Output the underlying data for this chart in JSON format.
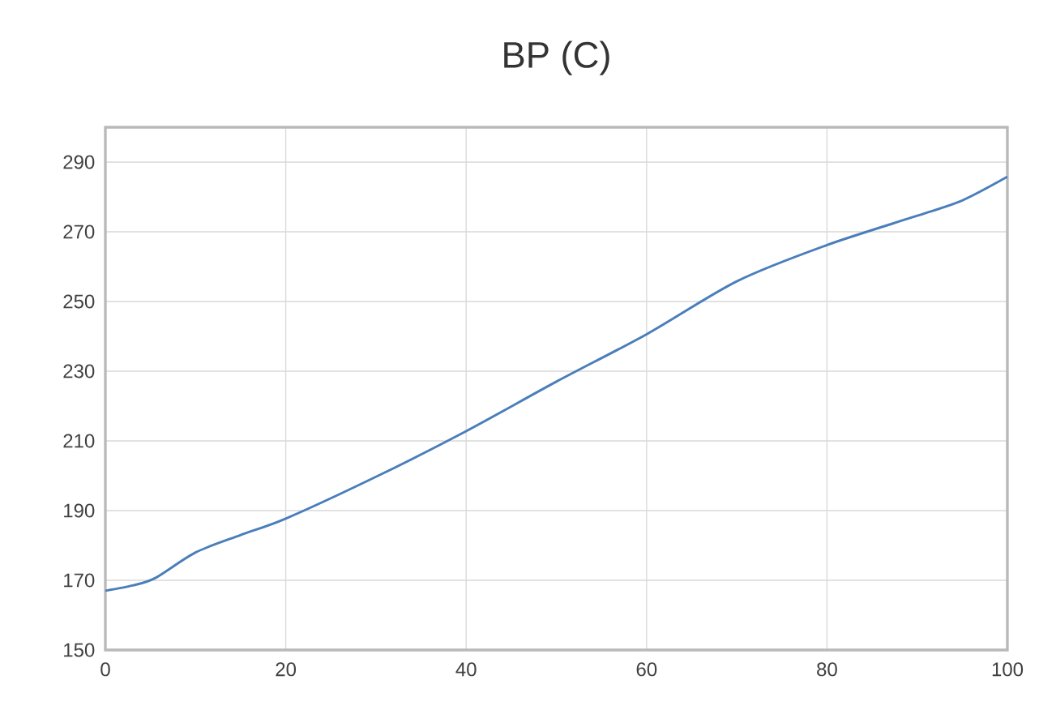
{
  "chart_data": {
    "type": "line",
    "title": "BP (C)",
    "x": [
      0,
      3,
      5.5,
      10,
      15,
      20,
      30,
      40,
      50,
      60,
      70,
      80,
      90,
      95,
      100
    ],
    "series": [
      {
        "color": "#4a7ebb",
        "values": [
          167,
          168.5,
          170.6,
          178,
          183,
          187.7,
          199.7,
          212.8,
          227,
          240.6,
          255.8,
          266.2,
          274.6,
          279,
          285.8
        ]
      }
    ],
    "xlim": [
      0,
      100
    ],
    "xticks": [
      0,
      20,
      40,
      60,
      80,
      100
    ],
    "ylim": [
      150,
      300
    ],
    "yticks": [
      150,
      170,
      190,
      210,
      230,
      250,
      270,
      290
    ],
    "grid": true,
    "marker": "none",
    "line_style": "solid"
  }
}
